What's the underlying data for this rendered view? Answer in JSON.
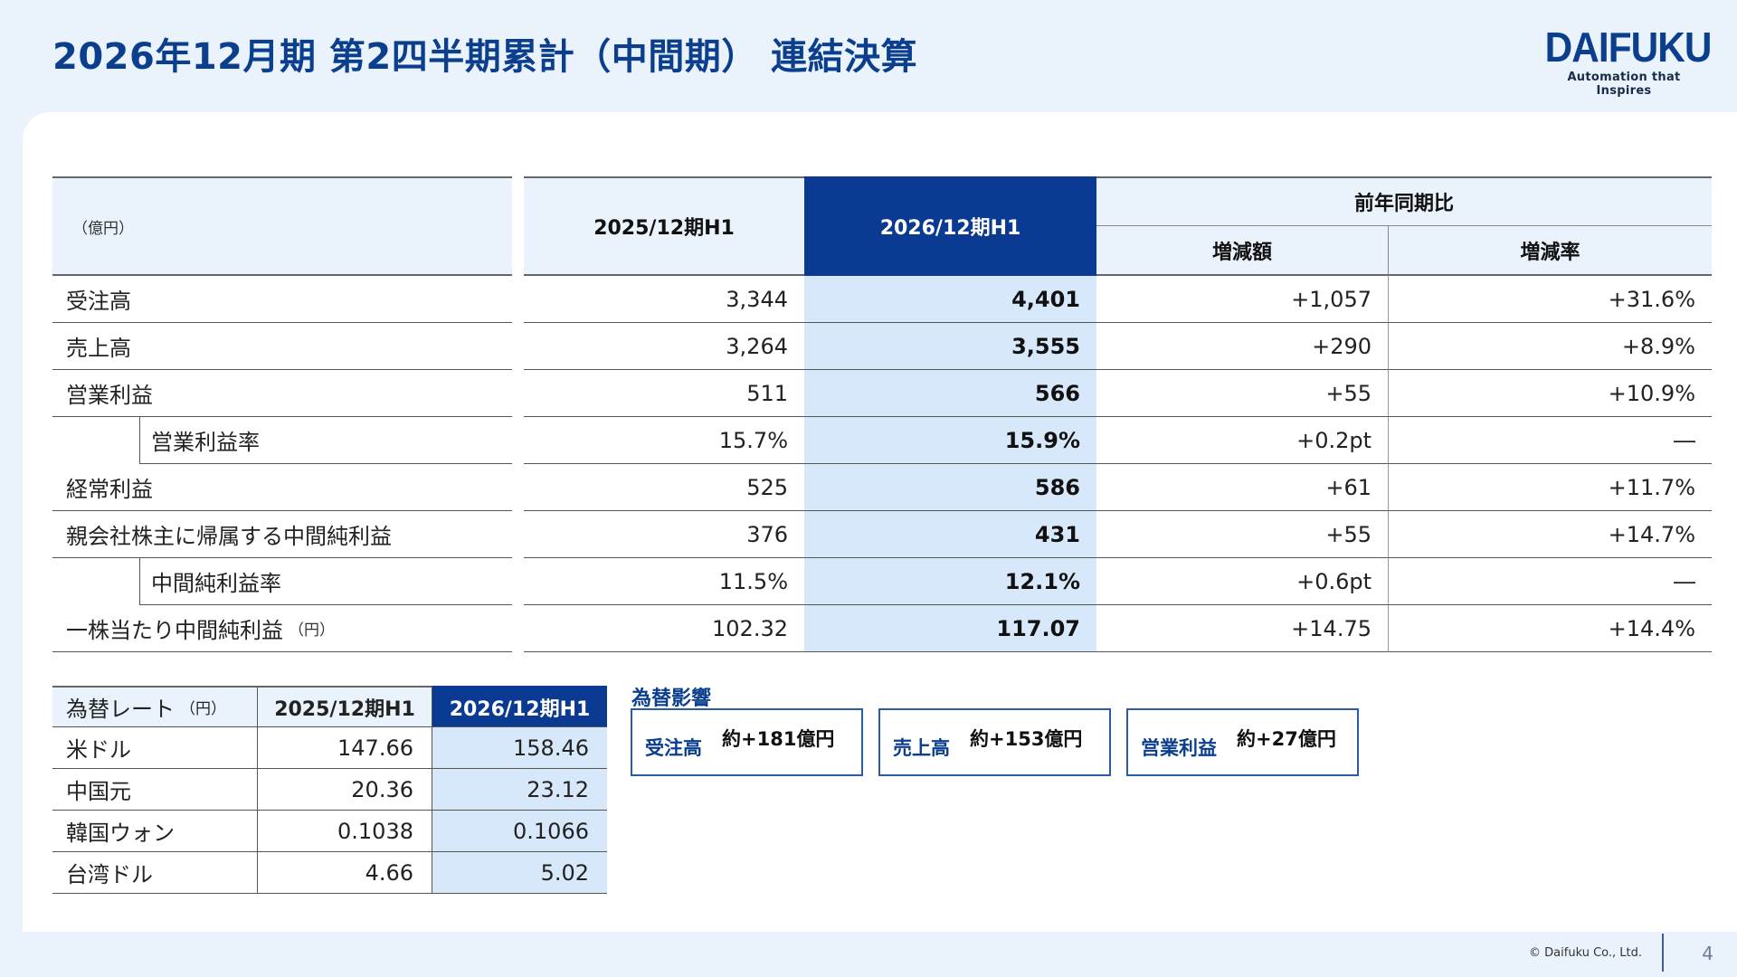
{
  "header": {
    "title": "2026年12月期 第2四半期累計（中間期） 連結決算",
    "logo_text": "DAIFUKU",
    "logo_tagline": "Automation that Inspires"
  },
  "main_table": {
    "unit": "（億円）",
    "col_2025": "2025/12期H1",
    "col_2026": "2026/12期H1",
    "col_yoy": "前年同期比",
    "col_diff": "増減額",
    "col_rate": "増減率",
    "rows": [
      {
        "label": "受注高",
        "unit": "",
        "v2025": "3,344",
        "v2026": "4,401",
        "diff": "+1,057",
        "rate": "+31.6%"
      },
      {
        "label": "売上高",
        "unit": "",
        "v2025": "3,264",
        "v2026": "3,555",
        "diff": "+290",
        "rate": "+8.9%"
      },
      {
        "label": "営業利益",
        "unit": "",
        "v2025": "511",
        "v2026": "566",
        "diff": "+55",
        "rate": "+10.9%"
      },
      {
        "label": "営業利益率",
        "unit": "",
        "v2025": "15.7%",
        "v2026": "15.9%",
        "diff": "+0.2pt",
        "rate": "―"
      },
      {
        "label": "経常利益",
        "unit": "",
        "v2025": "525",
        "v2026": "586",
        "diff": "+61",
        "rate": "+11.7%"
      },
      {
        "label": "親会社株主に帰属する中間純利益",
        "unit": "",
        "v2025": "376",
        "v2026": "431",
        "diff": "+55",
        "rate": "+14.7%"
      },
      {
        "label": "中間純利益率",
        "unit": "",
        "v2025": "11.5%",
        "v2026": "12.1%",
        "diff": "+0.6pt",
        "rate": "―"
      },
      {
        "label": "一株当たり中間純利益",
        "unit": "（円）",
        "v2025": "102.32",
        "v2026": "117.07",
        "diff": "+14.75",
        "rate": "+14.4%"
      }
    ]
  },
  "fx_table": {
    "label": "為替レート",
    "unit": "（円）",
    "col_2025": "2025/12期H1",
    "col_2026": "2026/12期H1",
    "rows": [
      {
        "currency": "米ドル",
        "v2025": "147.66",
        "v2026": "158.46"
      },
      {
        "currency": "中国元",
        "v2025": "20.36",
        "v2026": "23.12"
      },
      {
        "currency": "韓国ウォン",
        "v2025": "0.1038",
        "v2026": "0.1066"
      },
      {
        "currency": "台湾ドル",
        "v2025": "4.66",
        "v2026": "5.02"
      }
    ]
  },
  "fx_impact": {
    "title": "為替影響",
    "items": [
      {
        "label": "受注高",
        "value": "約+181億円"
      },
      {
        "label": "売上高",
        "value": "約+153億円"
      },
      {
        "label": "営業利益",
        "value": "約+27億円"
      }
    ]
  },
  "footer": {
    "copyright": "© Daifuku Co., Ltd.",
    "page_number": "4"
  }
}
